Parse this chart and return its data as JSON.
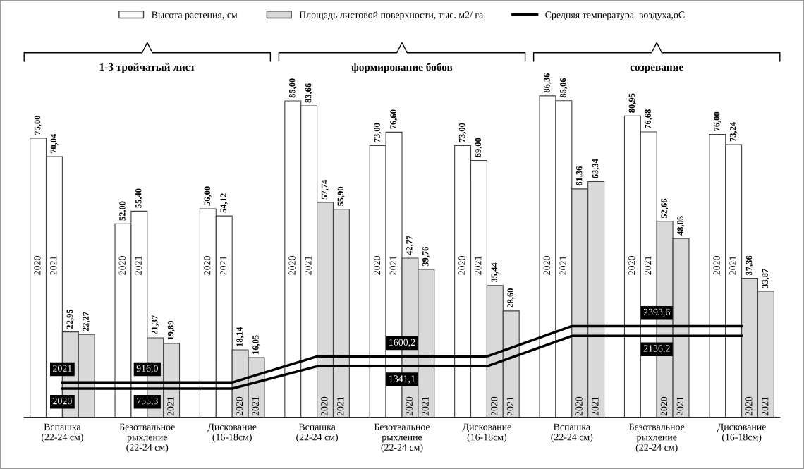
{
  "chart_data": {
    "type": "bar",
    "categories": [
      "Вспашка\n(22-24 см)",
      "Безотвальное\nрыхление\n(22-24 см)",
      "Дискование\n(16-18см)",
      "Вспашка\n(22-24 см)",
      "Безотвальное\nрыхление\n(22-24 см)",
      "Дискование\n(16-18см)",
      "Вспашка\n(22-24 см)",
      "Безотвальное\nрыхление\n(22-24 см)",
      "Дискование\n(16-18см)"
    ],
    "series": [
      {
        "name": "Высота растения, см",
        "color": "#ffffff",
        "values": [
          75.0,
          52.0,
          56.0,
          85.0,
          73.0,
          73.0,
          86.36,
          80.95,
          76.0
        ],
        "value_labels": [
          "75,00",
          "52,00",
          "56,00",
          "85,00",
          "73,00",
          "73,00",
          "86,36",
          "80,95",
          "76,00"
        ]
      },
      {
        "color": "#ffffff",
        "values": [
          70.04,
          55.4,
          54.12,
          83.66,
          76.6,
          69.0,
          85.06,
          76.68,
          73.24
        ],
        "value_labels": [
          "70,04",
          "55,40",
          "54,12",
          "83,66",
          "76,60",
          "69,00",
          "85,06",
          "76,68",
          "73,24"
        ]
      },
      {
        "name": "Площадь листовой поверхности, тыс. м2/ га",
        "color": "#d9d9d9",
        "values": [
          22.95,
          21.37,
          18.14,
          57.74,
          42.77,
          35.44,
          61.36,
          52.66,
          37.36
        ],
        "value_labels": [
          "22,95",
          "21,37",
          "18,14",
          "57,74",
          "42,77",
          "35,44",
          "61,36",
          "52,66",
          "37,36"
        ]
      },
      {
        "color": "#d9d9d9",
        "values": [
          22.27,
          19.89,
          16.05,
          55.9,
          39.76,
          28.6,
          63.34,
          48.05,
          33.87
        ],
        "value_labels": [
          "22,27",
          "19,89",
          "16,05",
          "55,90",
          "39,76",
          "28,60",
          "63,34",
          "48,05",
          "33,87"
        ]
      },
      {
        "name": "Средняя температура  воздуха,оС",
        "type": "line",
        "axis": "y2",
        "color": "#000000",
        "values": [
          916.0,
          916.0,
          916.0,
          1600.2,
          1600.2,
          1600.2,
          2393.6,
          2393.6,
          2393.6
        ],
        "value_labels": [
          null,
          "916,0",
          null,
          null,
          "1600,2",
          null,
          null,
          "2393,6",
          null
        ]
      },
      {
        "type": "line",
        "axis": "y2",
        "color": "#000000",
        "values": [
          755.3,
          755.3,
          755.3,
          1341.1,
          1341.1,
          1341.1,
          2136.2,
          2136.2,
          2136.2
        ],
        "value_labels": [
          null,
          "755,3",
          null,
          null,
          "1341,1",
          null,
          null,
          "2136,2",
          null
        ]
      }
    ],
    "annotations": [
      "1-3 тройчатый лист",
      "формирование бобов",
      "созревание",
      "2021",
      "2020",
      "2020",
      "2021",
      "2020",
      "2021",
      "2021",
      "2020",
      "2021",
      "2020",
      "2021",
      "2020",
      "2021",
      "2020",
      "2021",
      "2020",
      "2021",
      "2020",
      "2021",
      "2020",
      "2021",
      "2020",
      "2021",
      "2020",
      "2021",
      "2020",
      "2021",
      "2020",
      "2021",
      "2020",
      "2021",
      "2020",
      "2021",
      "2020",
      "2021"
    ],
    "tick_labels": "x",
    "legend": "top"
  }
}
